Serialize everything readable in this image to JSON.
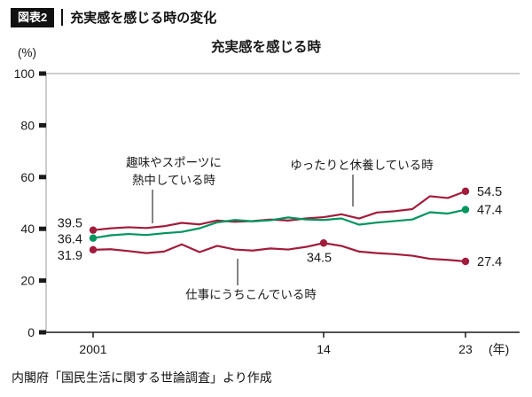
{
  "header": {
    "badge": "図表2",
    "title": "充実感を感じる時の変化"
  },
  "footer": {
    "source": "内閣府「国民生活に関する世論調査」より作成"
  },
  "chart_data": {
    "type": "line",
    "title": "充実感を感じる時",
    "ylabel": "(%)",
    "xlabel": "(年)",
    "ylim": [
      0,
      100
    ],
    "yticks": [
      0,
      20,
      40,
      60,
      80,
      100
    ],
    "x_years": [
      2001,
      2002,
      2003,
      2004,
      2005,
      2006,
      2007,
      2008,
      2009,
      2010,
      2011,
      2012,
      2013,
      2014,
      2015,
      2016,
      2017,
      2018,
      2019,
      2021,
      2022,
      2023
    ],
    "xticks": [
      {
        "year": 2001,
        "label": "2001"
      },
      {
        "year": 2014,
        "label": "14"
      },
      {
        "year": 2023,
        "label": "23"
      }
    ],
    "grid": false,
    "legend_position": "inline-annotations",
    "series": [
      {
        "name": "ゆったりと休養している時",
        "color": "#a21c3b",
        "values": [
          39.5,
          40.2,
          40.6,
          40.3,
          41.0,
          42.3,
          41.7,
          43.2,
          42.7,
          43.0,
          43.6,
          43.2,
          44.0,
          44.5,
          45.6,
          44.0,
          46.3,
          46.8,
          47.6,
          52.6,
          51.9,
          54.5
        ]
      },
      {
        "name": "趣味やスポーツに熱中している時",
        "color": "#00945e",
        "values": [
          36.4,
          37.5,
          38.0,
          37.6,
          38.3,
          38.8,
          40.2,
          42.5,
          43.4,
          42.9,
          43.3,
          44.4,
          43.6,
          43.4,
          44.0,
          41.6,
          42.4,
          43.0,
          43.6,
          46.4,
          45.9,
          47.4
        ]
      },
      {
        "name": "仕事にうちこんでいる時",
        "color": "#a21c3b",
        "values": [
          31.9,
          32.1,
          31.4,
          30.6,
          31.2,
          34.0,
          31.0,
          33.4,
          32.0,
          31.6,
          32.4,
          32.0,
          33.0,
          34.5,
          33.4,
          31.2,
          30.6,
          30.2,
          29.6,
          28.4,
          28.0,
          27.4
        ]
      }
    ],
    "point_labels": {
      "start": [
        "39.5",
        "36.4",
        "31.9"
      ],
      "end": [
        "54.5",
        "47.4",
        "27.4"
      ],
      "mid": {
        "series": 2,
        "year": 2014,
        "label": "34.5"
      }
    },
    "annotations": [
      {
        "text_lines": [
          "趣味やスポーツに",
          "熱中している時"
        ]
      },
      {
        "text_lines": [
          "ゆったりと休養している時"
        ]
      },
      {
        "text_lines": [
          "仕事にうちこんでいる時"
        ]
      }
    ]
  }
}
